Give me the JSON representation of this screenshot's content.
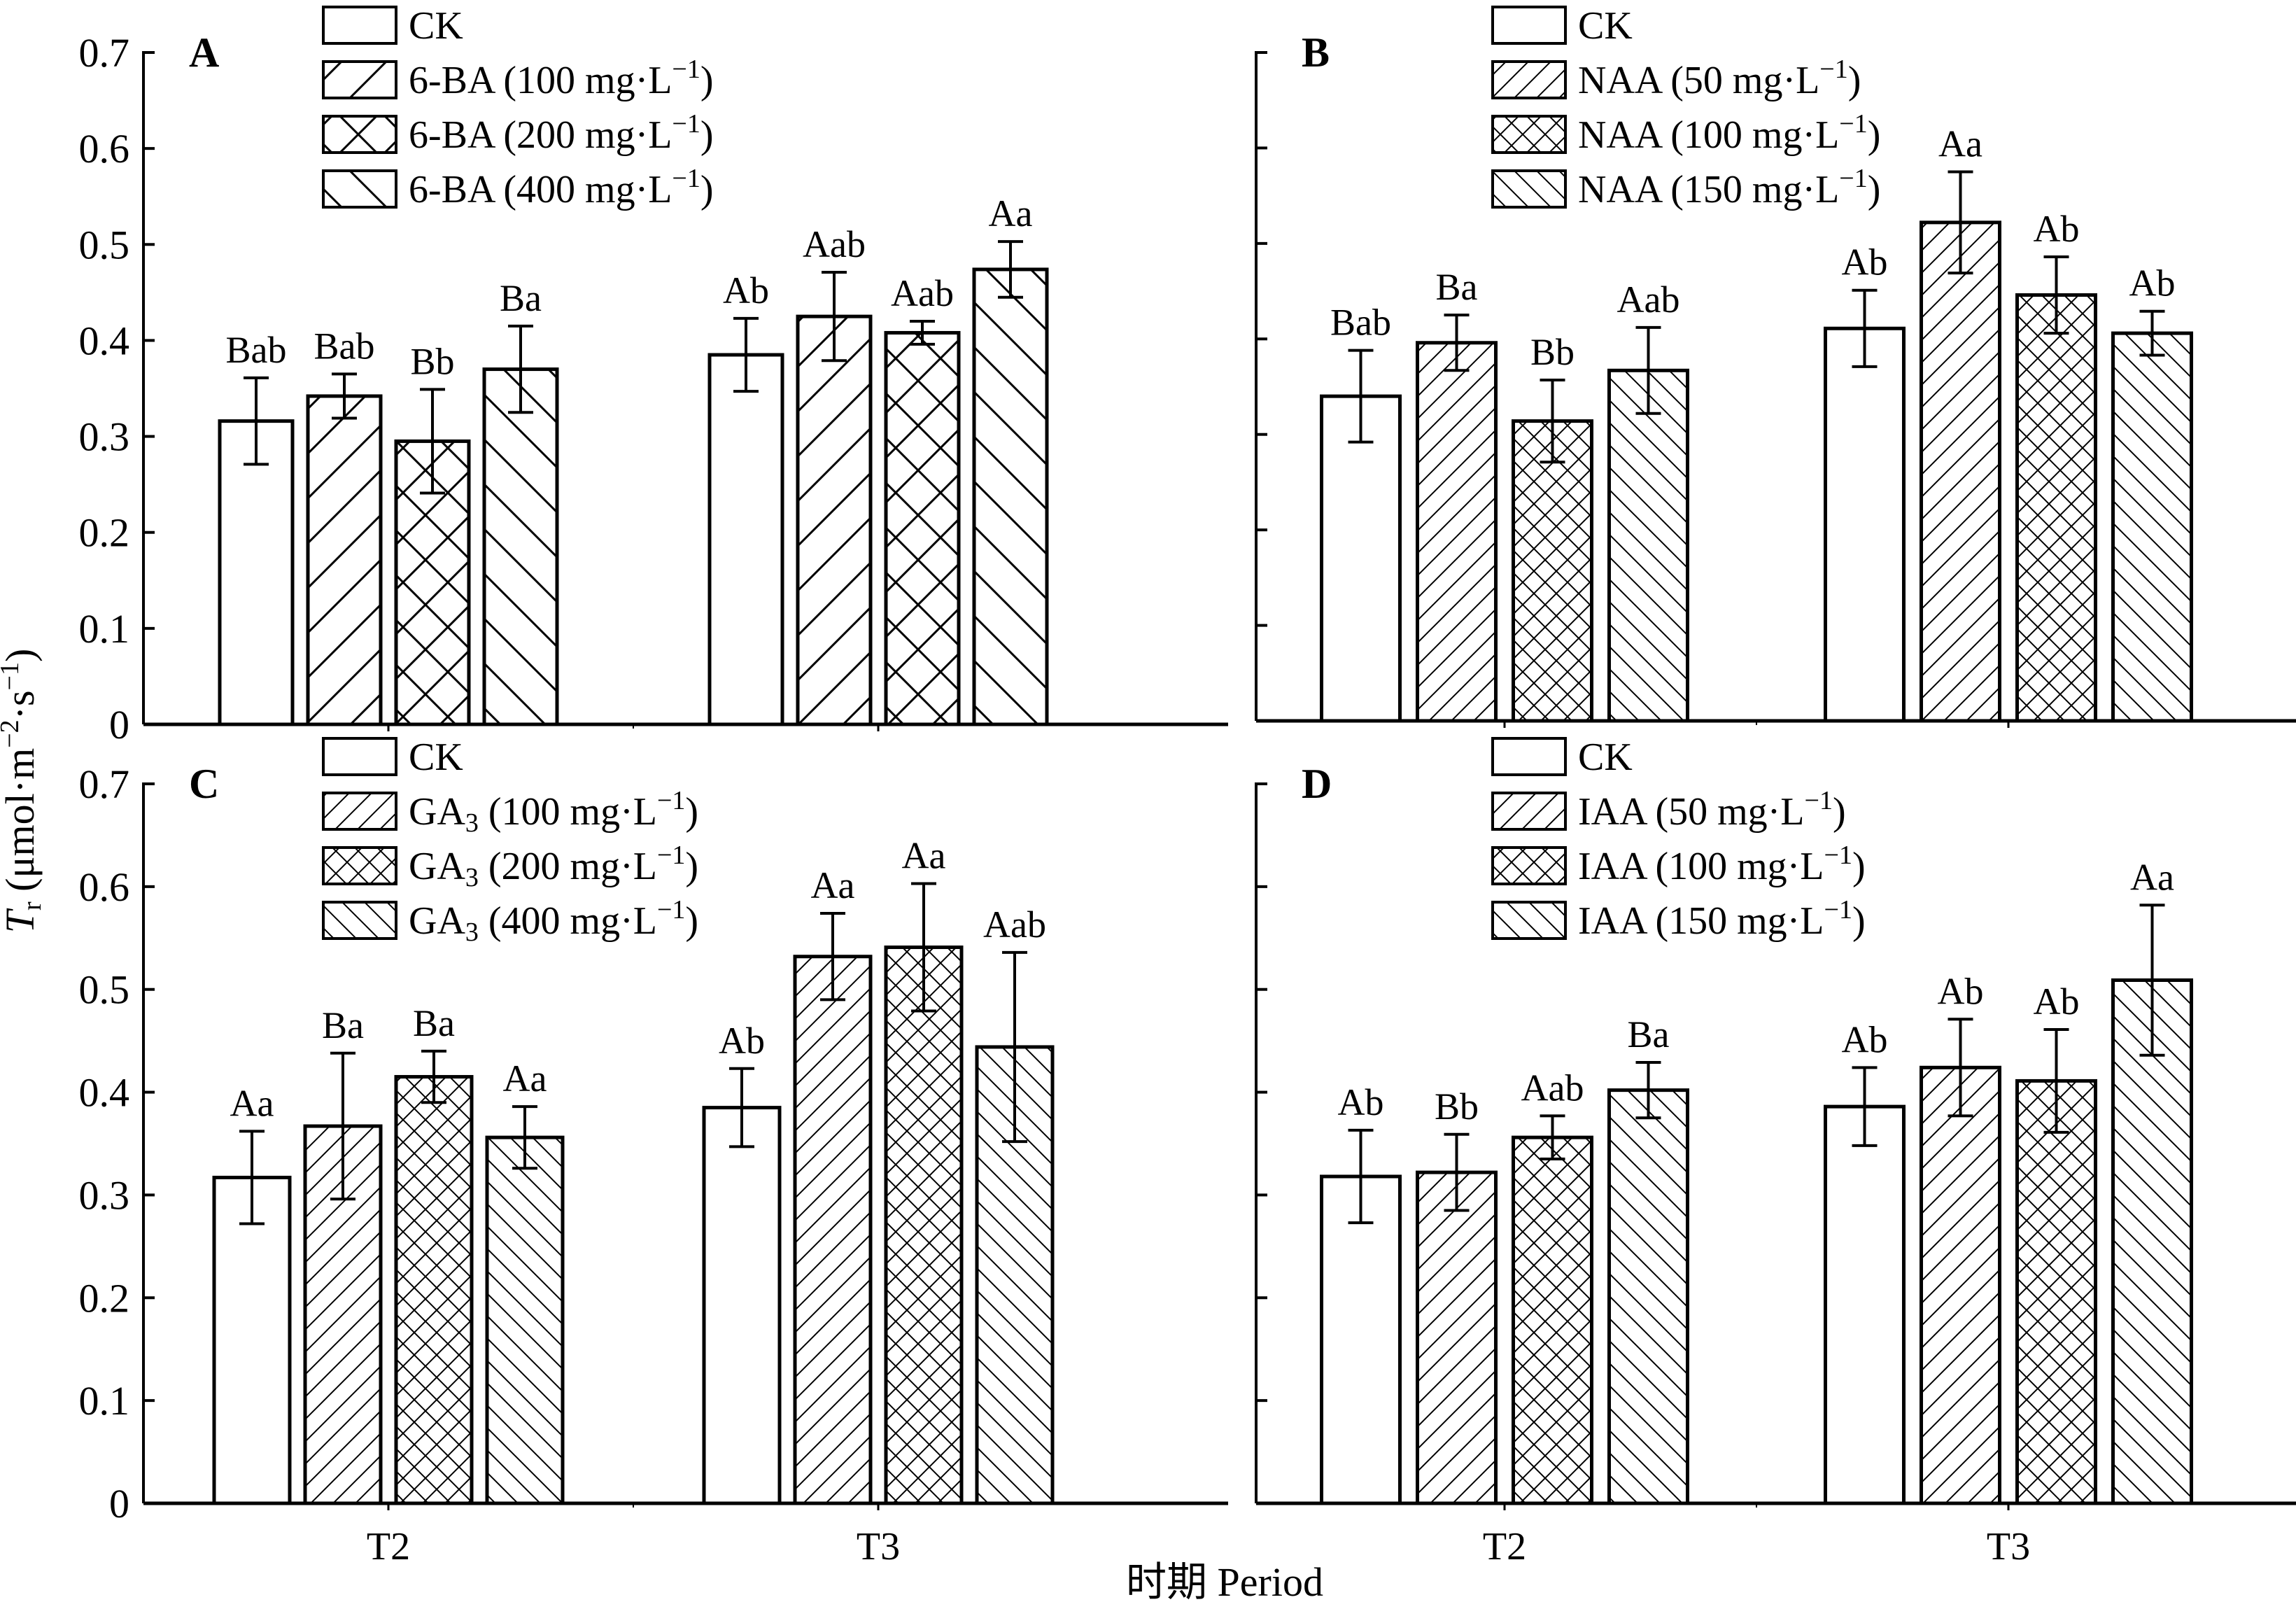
{
  "figure": {
    "ylabel_var": "T",
    "ylabel_sub": "r",
    "ylabel_unit_pre": " (μmol·m",
    "ylabel_sup1": "−2",
    "ylabel_mid": "·s",
    "ylabel_sup2": "−1",
    "ylabel_close": ")",
    "xlabel": "时期 Period",
    "colors": {
      "line": "#000000",
      "fill": "#ffffff"
    }
  },
  "chart_data": [
    {
      "type": "bar",
      "panel": "A",
      "categories": [
        "T2",
        "T3"
      ],
      "ylim": [
        0,
        0.7
      ],
      "yticks": [
        "0",
        "0.1",
        "0.2",
        "0.3",
        "0.4",
        "0.5",
        "0.6",
        "0.7"
      ],
      "show_ytick_labels": true,
      "legend_position": "top-center",
      "series": [
        {
          "name": "CK",
          "name_sub": "",
          "conc": "",
          "pattern": "none",
          "values": [
            0.316,
            0.385
          ],
          "errors": [
            0.045,
            0.038
          ],
          "labels": [
            "Bab",
            "Ab"
          ]
        },
        {
          "name": "6-BA",
          "name_sub": "",
          "conc": " (100 mg·L",
          "pattern": "diag-right",
          "values": [
            0.342,
            0.425
          ],
          "errors": [
            0.023,
            0.046
          ],
          "labels": [
            "Bab",
            "Aab"
          ]
        },
        {
          "name": "6-BA",
          "name_sub": "",
          "conc": " (200 mg·L",
          "pattern": "cross",
          "values": [
            0.295,
            0.408
          ],
          "errors": [
            0.054,
            0.012
          ],
          "labels": [
            "Bb",
            "Aab"
          ]
        },
        {
          "name": "6-BA",
          "name_sub": "",
          "conc": " (400 mg·L",
          "pattern": "diag-left",
          "values": [
            0.37,
            0.474
          ],
          "errors": [
            0.045,
            0.029
          ],
          "labels": [
            "Ba",
            "Aa"
          ]
        }
      ]
    },
    {
      "type": "bar",
      "panel": "B",
      "categories": [
        "T2",
        "T3"
      ],
      "ylim": [
        0,
        0.7
      ],
      "yticks": [
        "0",
        "0.1",
        "0.2",
        "0.3",
        "0.4",
        "0.5",
        "0.6",
        "0.7"
      ],
      "show_ytick_labels": false,
      "legend_position": "top-center",
      "series": [
        {
          "name": "CK",
          "name_sub": "",
          "conc": "",
          "pattern": "none",
          "values": [
            0.34,
            0.411
          ],
          "errors": [
            0.048,
            0.04
          ],
          "labels": [
            "Bab",
            "Ab"
          ]
        },
        {
          "name": "NAA",
          "name_sub": "",
          "conc": " (50 mg·L",
          "pattern": "diag-right-dense",
          "values": [
            0.396,
            0.522
          ],
          "errors": [
            0.029,
            0.053
          ],
          "labels": [
            "Ba",
            "Aa"
          ]
        },
        {
          "name": "NAA",
          "name_sub": "",
          "conc": " (100 mg·L",
          "pattern": "cross-dense",
          "values": [
            0.314,
            0.446
          ],
          "errors": [
            0.043,
            0.04
          ],
          "labels": [
            "Bb",
            "Ab"
          ]
        },
        {
          "name": "NAA",
          "name_sub": "",
          "conc": " (150 mg·L",
          "pattern": "diag-left-dense",
          "values": [
            0.367,
            0.406
          ],
          "errors": [
            0.045,
            0.023
          ],
          "labels": [
            "Aab",
            "Ab"
          ]
        }
      ]
    },
    {
      "type": "bar",
      "panel": "C",
      "categories": [
        "T2",
        "T3"
      ],
      "ylim": [
        0,
        0.7
      ],
      "yticks": [
        "0",
        "0.1",
        "0.2",
        "0.3",
        "0.4",
        "0.5",
        "0.6",
        "0.7"
      ],
      "show_ytick_labels": true,
      "legend_position": "top-center",
      "series": [
        {
          "name": "CK",
          "name_sub": "",
          "conc": "",
          "pattern": "none",
          "values": [
            0.317,
            0.385
          ],
          "errors": [
            0.045,
            0.038
          ],
          "labels": [
            "Aa",
            "Ab"
          ]
        },
        {
          "name": "GA",
          "name_sub": "3",
          "conc": " (100 mg·L",
          "pattern": "diag-right-dense",
          "values": [
            0.367,
            0.532
          ],
          "errors": [
            0.071,
            0.042
          ],
          "labels": [
            "Ba",
            "Aa"
          ]
        },
        {
          "name": "GA",
          "name_sub": "3",
          "conc": " (200 mg·L",
          "pattern": "cross-dense",
          "values": [
            0.415,
            0.541
          ],
          "errors": [
            0.025,
            0.062
          ],
          "labels": [
            "Ba",
            "Aa"
          ]
        },
        {
          "name": "GA",
          "name_sub": "3",
          "conc": " (400 mg·L",
          "pattern": "diag-left-dense",
          "values": [
            0.356,
            0.444
          ],
          "errors": [
            0.03,
            0.092
          ],
          "labels": [
            "Aa",
            "Aab"
          ]
        }
      ]
    },
    {
      "type": "bar",
      "panel": "D",
      "categories": [
        "T2",
        "T3"
      ],
      "ylim": [
        0,
        0.7
      ],
      "yticks": [
        "0",
        "0.1",
        "0.2",
        "0.3",
        "0.4",
        "0.5",
        "0.6",
        "0.7"
      ],
      "show_ytick_labels": false,
      "legend_position": "top-center",
      "series": [
        {
          "name": "CK",
          "name_sub": "",
          "conc": "",
          "pattern": "none",
          "values": [
            0.318,
            0.386
          ],
          "errors": [
            0.045,
            0.038
          ],
          "labels": [
            "Ab",
            "Ab"
          ]
        },
        {
          "name": "IAA",
          "name_sub": "",
          "conc": " (50 mg·L",
          "pattern": "diag-right-dense",
          "values": [
            0.322,
            0.424
          ],
          "errors": [
            0.037,
            0.047
          ],
          "labels": [
            "Bb",
            "Ab"
          ]
        },
        {
          "name": "IAA",
          "name_sub": "",
          "conc": " (100 mg·L",
          "pattern": "cross-dense",
          "values": [
            0.356,
            0.411
          ],
          "errors": [
            0.021,
            0.05
          ],
          "labels": [
            "Aab",
            "Ab"
          ]
        },
        {
          "name": "IAA",
          "name_sub": "",
          "conc": " (150 mg·L",
          "pattern": "diag-left-dense",
          "values": [
            0.402,
            0.509
          ],
          "errors": [
            0.027,
            0.073
          ],
          "labels": [
            "Ba",
            "Aa"
          ]
        }
      ]
    }
  ],
  "legend_unit_sup": "−1",
  "legend_unit_close": ")"
}
